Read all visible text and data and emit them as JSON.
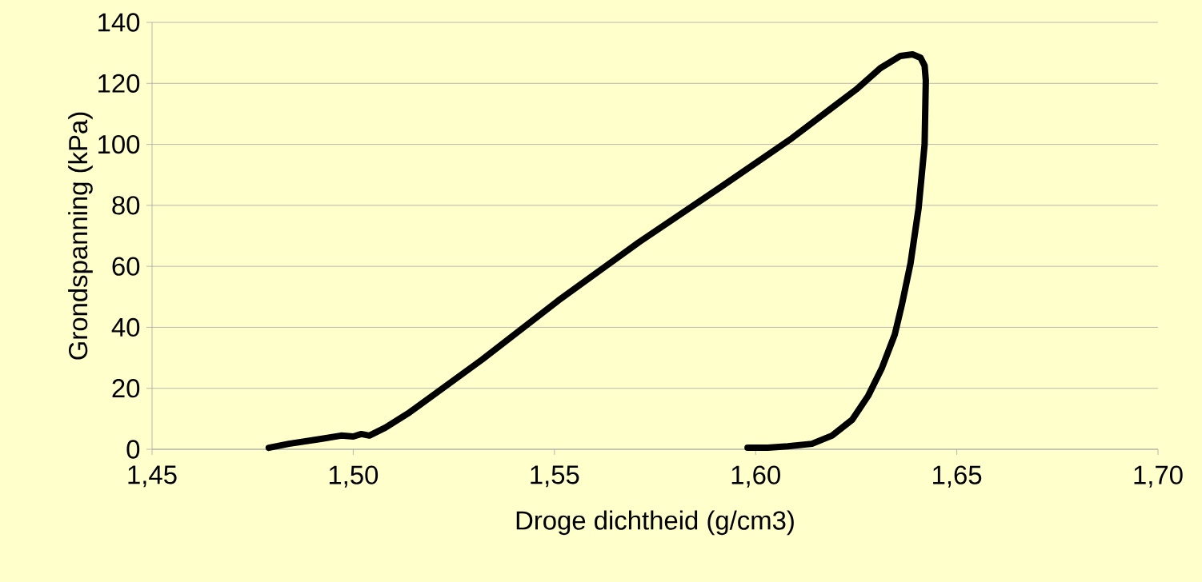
{
  "chart_data": {
    "type": "line",
    "xlabel": "Droge dichtheid (g/cm3)",
    "ylabel": "Grondspanning (kPa)",
    "xlim": [
      1.45,
      1.7
    ],
    "ylim": [
      0,
      140
    ],
    "xticks": [
      {
        "value": 1.45,
        "label": "1,45"
      },
      {
        "value": 1.5,
        "label": "1,50"
      },
      {
        "value": 1.55,
        "label": "1,55"
      },
      {
        "value": 1.6,
        "label": "1,60"
      },
      {
        "value": 1.65,
        "label": "1,65"
      },
      {
        "value": 1.7,
        "label": "1,70"
      }
    ],
    "yticks": [
      0,
      20,
      40,
      60,
      80,
      100,
      120,
      140
    ],
    "grid": "y",
    "marker": "none",
    "line_style": "solid",
    "series": [
      {
        "color": "#000000",
        "x": [
          1.479,
          1.484,
          1.492,
          1.497,
          1.5,
          1.502,
          1.504,
          1.508,
          1.514,
          1.532,
          1.551,
          1.571,
          1.591,
          1.609,
          1.619,
          1.625,
          1.631,
          1.636,
          1.639,
          1.641,
          1.642,
          1.6423,
          1.642,
          1.6405,
          1.6385,
          1.6364,
          1.6346,
          1.6314,
          1.628,
          1.624,
          1.619,
          1.614,
          1.608,
          1.603,
          1.598
        ],
        "values": [
          0.5,
          1.8,
          3.4,
          4.5,
          4.2,
          5.0,
          4.5,
          7.1,
          12.1,
          29.4,
          48.8,
          67.9,
          85.7,
          102,
          112,
          118,
          125,
          129,
          129.5,
          128.4,
          125.8,
          121,
          100,
          79,
          61,
          47.7,
          37.7,
          26.7,
          17.6,
          9.7,
          4.5,
          1.8,
          1.0,
          0.5,
          0.5
        ]
      }
    ]
  }
}
